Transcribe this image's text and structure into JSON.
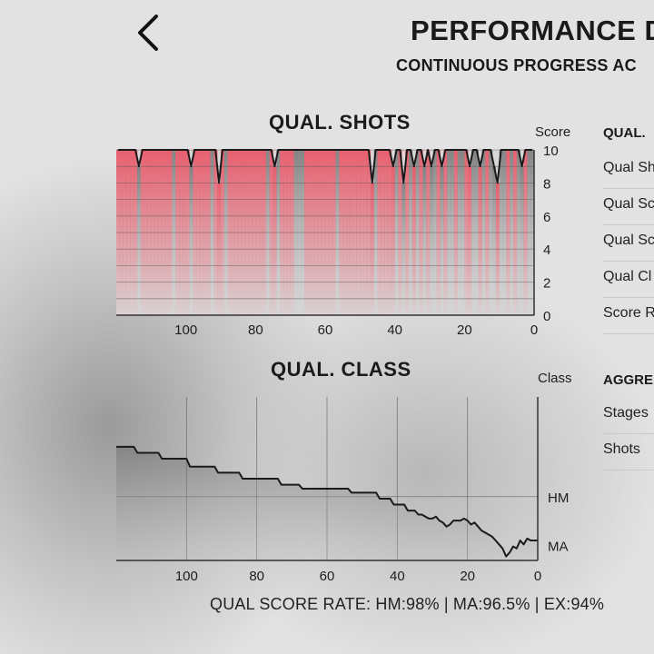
{
  "header": {
    "title": "PERFORMANCE D",
    "subtitle": "CONTINUOUS PROGRESS AC",
    "back_icon": "chevron-left-icon"
  },
  "chart_data": [
    {
      "type": "bar",
      "title": "QUAL. SHOTS",
      "ylabel": "Score",
      "ylim": [
        0,
        10
      ],
      "yticks": [
        "10",
        "8",
        "6",
        "4",
        "2",
        "0"
      ],
      "xlim": [
        120,
        0
      ],
      "xticks": [
        "100",
        "80",
        "60",
        "40",
        "20",
        "0"
      ],
      "colors": {
        "bar": "#e85a6a",
        "line": "#1a1a1a"
      },
      "x": [
        120,
        119,
        118,
        117,
        116,
        115,
        114,
        113,
        112,
        111,
        110,
        109,
        108,
        107,
        106,
        105,
        104,
        103,
        102,
        101,
        100,
        99,
        98,
        97,
        96,
        95,
        94,
        93,
        92,
        91,
        90,
        89,
        88,
        87,
        86,
        85,
        84,
        83,
        82,
        81,
        80,
        79,
        78,
        77,
        76,
        75,
        74,
        73,
        72,
        71,
        70,
        69,
        68,
        67,
        66,
        65,
        64,
        63,
        62,
        61,
        60,
        59,
        58,
        57,
        56,
        55,
        54,
        53,
        52,
        51,
        50,
        49,
        48,
        47,
        46,
        45,
        44,
        43,
        42,
        41,
        40,
        39,
        38,
        37,
        36,
        35,
        34,
        33,
        32,
        31,
        30,
        29,
        28,
        27,
        26,
        25,
        24,
        23,
        22,
        21,
        20,
        19,
        18,
        17,
        16,
        15,
        14,
        13,
        12,
        11,
        10,
        9,
        8,
        7,
        6,
        5,
        4,
        3,
        2,
        1
      ],
      "values": [
        10,
        10,
        10,
        10,
        10,
        10,
        9,
        10,
        10,
        10,
        10,
        10,
        10,
        10,
        10,
        10,
        10,
        10,
        10,
        10,
        10,
        9,
        10,
        10,
        10,
        10,
        10,
        10,
        10,
        8,
        10,
        10,
        10,
        10,
        10,
        10,
        10,
        10,
        10,
        10,
        10,
        10,
        10,
        10,
        10,
        9,
        10,
        10,
        10,
        10,
        10,
        10,
        10,
        10,
        10,
        10,
        10,
        10,
        10,
        10,
        10,
        10,
        10,
        10,
        10,
        10,
        10,
        10,
        10,
        10,
        10,
        10,
        10,
        8,
        10,
        10,
        10,
        10,
        10,
        9,
        10,
        10,
        8,
        10,
        10,
        9,
        10,
        10,
        9,
        10,
        9,
        10,
        10,
        9,
        10,
        10,
        10,
        10,
        10,
        10,
        10,
        9,
        10,
        10,
        9,
        10,
        10,
        10,
        9,
        8,
        10,
        10,
        10,
        10,
        10,
        10,
        9,
        10,
        10,
        10
      ],
      "bar_colors": [
        "r",
        "r",
        "r",
        "r",
        "r",
        "r",
        "g",
        "r",
        "r",
        "r",
        "r",
        "r",
        "r",
        "r",
        "r",
        "r",
        "g",
        "r",
        "r",
        "r",
        "r",
        "g",
        "r",
        "r",
        "r",
        "r",
        "r",
        "g",
        "r",
        "r",
        "r",
        "g",
        "r",
        "r",
        "r",
        "r",
        "r",
        "r",
        "r",
        "r",
        "r",
        "r",
        "r",
        "g",
        "r",
        "r",
        "g",
        "r",
        "r",
        "r",
        "r",
        "g",
        "g",
        "g",
        "r",
        "r",
        "r",
        "r",
        "r",
        "r",
        "r",
        "r",
        "r",
        "g",
        "r",
        "r",
        "r",
        "r",
        "r",
        "r",
        "r",
        "r",
        "r",
        "r",
        "g",
        "r",
        "r",
        "r",
        "r",
        "r",
        "g",
        "r",
        "g",
        "r",
        "g",
        "r",
        "g",
        "r",
        "g",
        "r",
        "g",
        "g",
        "r",
        "g",
        "r",
        "g",
        "g",
        "r",
        "g",
        "g",
        "r",
        "r",
        "g",
        "g",
        "r",
        "g",
        "r",
        "g",
        "g",
        "r",
        "g",
        "g",
        "r",
        "g",
        "r",
        "g",
        "g",
        "r",
        "g",
        "g"
      ]
    },
    {
      "type": "line",
      "title": "QUAL. CLASS",
      "ylabel": "Class",
      "yticks": [
        "HM",
        "MA"
      ],
      "xlim": [
        120,
        0
      ],
      "xticks": [
        "100",
        "80",
        "60",
        "40",
        "20",
        "0"
      ],
      "colors": {
        "line": "#1a1a1a"
      },
      "x": [
        120,
        115,
        114,
        108,
        107,
        100,
        99,
        92,
        91,
        85,
        84,
        74,
        73,
        68,
        67,
        54,
        53,
        46,
        45,
        42,
        41,
        38,
        37,
        35,
        34,
        33,
        31,
        30,
        29,
        28,
        27,
        26,
        25,
        24,
        22,
        21,
        20,
        19,
        18,
        17,
        16,
        15,
        14,
        13,
        12,
        11,
        10,
        9,
        8,
        7,
        6,
        5,
        4,
        3,
        2,
        1,
        0
      ],
      "values": [
        100.5,
        100.5,
        100.2,
        100.2,
        99.9,
        99.9,
        99.5,
        99.5,
        99.2,
        99.2,
        98.9,
        98.9,
        98.6,
        98.6,
        98.4,
        98.4,
        98.2,
        98.2,
        97.9,
        97.9,
        97.6,
        97.6,
        97.3,
        97.3,
        97.1,
        97.1,
        96.9,
        96.9,
        97.0,
        96.8,
        96.7,
        96.5,
        96.6,
        96.8,
        96.8,
        96.9,
        96.8,
        96.6,
        96.7,
        96.5,
        96.3,
        96.2,
        96.1,
        96.0,
        95.8,
        95.6,
        95.4,
        95.0,
        95.2,
        95.5,
        95.4,
        95.8,
        95.6,
        95.9,
        95.8,
        95.8,
        95.8
      ],
      "ylim": [
        94.8,
        103
      ]
    }
  ],
  "side_panel": {
    "shots_section_head": "QUAL.",
    "shots_items": [
      "Qual Sh",
      "Qual Sc",
      "Qual Sc",
      "Qual Cl",
      "Score R"
    ],
    "class_section_head": "AGGRE",
    "class_items": [
      "Stages",
      "Shots"
    ]
  },
  "footer": {
    "rate_text": "QUAL SCORE RATE: HM:98% | MA:96.5% | EX:94%"
  }
}
